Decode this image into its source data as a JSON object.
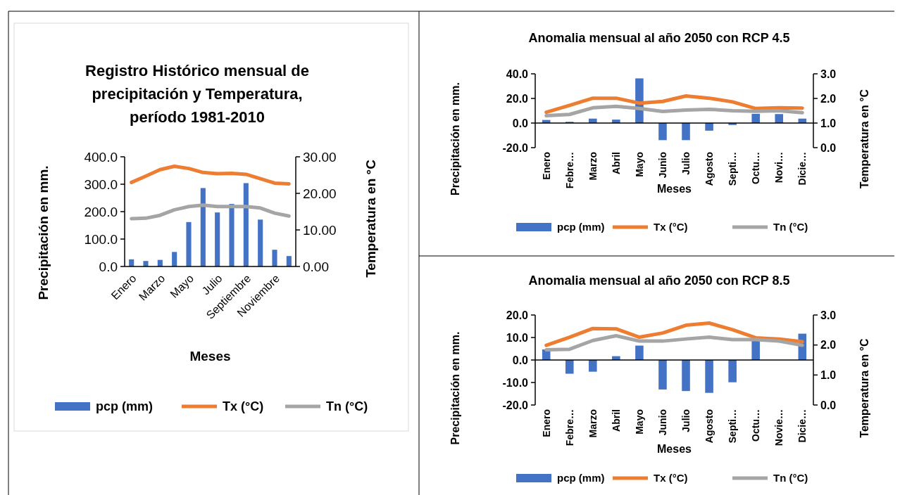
{
  "chart_data": [
    {
      "type": "bar",
      "title": "Registro Histórico mensual de precipitación y Temperatura, período 1981-2010",
      "xlabel": "Meses",
      "ylabel": "Precipitación en mm.",
      "y2label": "Temperatura en °C",
      "categories": [
        "Enero",
        null,
        "Marzo",
        null,
        "Mayo",
        null,
        "Julio",
        null,
        "Septiembre",
        null,
        "Noviembre",
        null
      ],
      "ylim": [
        0,
        400
      ],
      "yticks": [
        {
          "value": 0,
          "label": "0.0"
        },
        {
          "value": 100,
          "label": "100.0"
        },
        {
          "value": 200,
          "label": "200.0"
        },
        {
          "value": 300,
          "label": "300.0"
        },
        {
          "value": 400,
          "label": "400.0"
        }
      ],
      "y2lim": [
        0,
        30
      ],
      "y2ticks": [
        {
          "value": 0,
          "label": "0.00"
        },
        {
          "value": 10,
          "label": "10.00"
        },
        {
          "value": 20,
          "label": "20.00"
        },
        {
          "value": 30,
          "label": "30.00"
        }
      ],
      "legend": "bottom",
      "series": [
        {
          "name": "pcp (mm)",
          "color": "#4472c4",
          "values": [
            26,
            20,
            24,
            53,
            162,
            286,
            197,
            228,
            304,
            171,
            61,
            38
          ]
        },
        {
          "name": "Tx (°C)",
          "type": "line",
          "axis": "y2",
          "color": "#ed7d31",
          "values": [
            23.0,
            24.7,
            26.5,
            27.4,
            26.8,
            25.7,
            25.4,
            25.5,
            25.2,
            24.0,
            22.8,
            22.6
          ]
        },
        {
          "name": "Tn (°C)",
          "type": "line",
          "axis": "y2",
          "color": "#a5a5a5",
          "values": [
            13.1,
            13.2,
            14.0,
            15.5,
            16.4,
            16.8,
            16.4,
            16.4,
            16.4,
            16.0,
            14.6,
            13.8
          ]
        }
      ]
    },
    {
      "type": "bar",
      "title": "Anomalia mensual al año 2050 con RCP 4.5",
      "xlabel": "Meses",
      "ylabel": "Precipitación en mm.",
      "y2label": "Temperatura en °C",
      "categories": [
        "Enero",
        "Febre…",
        "Marzo",
        "Abril",
        "Mayo",
        "Junio",
        "Julio",
        "Agosto",
        "Septi…",
        "Octu…",
        "Novi…",
        "Dicie…"
      ],
      "ylim": [
        -20,
        40
      ],
      "yticks": [
        {
          "value": -20,
          "label": "-20.0"
        },
        {
          "value": 0,
          "label": "0.0"
        },
        {
          "value": 20,
          "label": "20.0"
        },
        {
          "value": 40,
          "label": "40.0"
        }
      ],
      "y2lim": [
        0,
        3
      ],
      "y2ticks": [
        {
          "value": 0,
          "label": "0.0"
        },
        {
          "value": 1,
          "label": "1.0"
        },
        {
          "value": 2,
          "label": "2.0"
        },
        {
          "value": 3,
          "label": "3.0"
        }
      ],
      "legend": "bottom",
      "series": [
        {
          "name": "pcp (mm)",
          "color": "#4472c4",
          "values": [
            2.5,
            1.0,
            3.6,
            2.8,
            36.3,
            -13.9,
            -13.9,
            -6.2,
            -1.6,
            7.5,
            7.3,
            3.6
          ]
        },
        {
          "name": "Tx (°C)",
          "type": "line",
          "axis": "y2",
          "color": "#ed7d31",
          "values": [
            1.44,
            1.72,
            2.01,
            2.01,
            1.81,
            1.88,
            2.1,
            2.01,
            1.86,
            1.59,
            1.62,
            1.61
          ]
        },
        {
          "name": "Tn (°C)",
          "type": "line",
          "axis": "y2",
          "color": "#a5a5a5",
          "values": [
            1.3,
            1.35,
            1.62,
            1.68,
            1.59,
            1.47,
            1.53,
            1.56,
            1.5,
            1.48,
            1.5,
            1.42
          ]
        }
      ]
    },
    {
      "type": "bar",
      "title": "Anomalia mensual al año 2050 con RCP 8.5",
      "xlabel": "Meses",
      "ylabel": "Precipitación en mm.",
      "y2label": "Temperatura en °C",
      "categories": [
        "Enero",
        "Febre…",
        "Marzo",
        "Abril",
        "Mayo",
        "Junio",
        "Julio",
        "Agosto",
        "Septi…",
        "Octu…",
        "Novie…",
        "Dicie…"
      ],
      "ylim": [
        -20,
        20
      ],
      "yticks": [
        {
          "value": -20,
          "label": "-20.0"
        },
        {
          "value": -10,
          "label": "-10.0"
        },
        {
          "value": 0,
          "label": "0.0"
        },
        {
          "value": 10,
          "label": "10.0"
        },
        {
          "value": 20,
          "label": "20.0"
        }
      ],
      "y2lim": [
        0,
        3
      ],
      "y2ticks": [
        {
          "value": 0,
          "label": "0.0"
        },
        {
          "value": 1,
          "label": "1.0"
        },
        {
          "value": 2,
          "label": "2.0"
        },
        {
          "value": 3,
          "label": "3.0"
        }
      ],
      "legend": "bottom",
      "series": [
        {
          "name": "pcp (mm)",
          "color": "#4472c4",
          "values": [
            4.7,
            -6.1,
            -5.2,
            1.7,
            6.4,
            -13.1,
            -13.8,
            -14.6,
            -9.9,
            8.5,
            0,
            11.7
          ]
        },
        {
          "name": "Tx (°C)",
          "type": "line",
          "axis": "y2",
          "color": "#ed7d31",
          "values": [
            1.99,
            2.26,
            2.55,
            2.54,
            2.26,
            2.4,
            2.66,
            2.73,
            2.51,
            2.24,
            2.2,
            2.11
          ]
        },
        {
          "name": "Tn (°C)",
          "type": "line",
          "axis": "y2",
          "color": "#a5a5a5",
          "values": [
            1.84,
            1.86,
            2.15,
            2.31,
            2.13,
            2.13,
            2.2,
            2.26,
            2.18,
            2.18,
            2.13,
            1.99
          ]
        }
      ]
    }
  ]
}
